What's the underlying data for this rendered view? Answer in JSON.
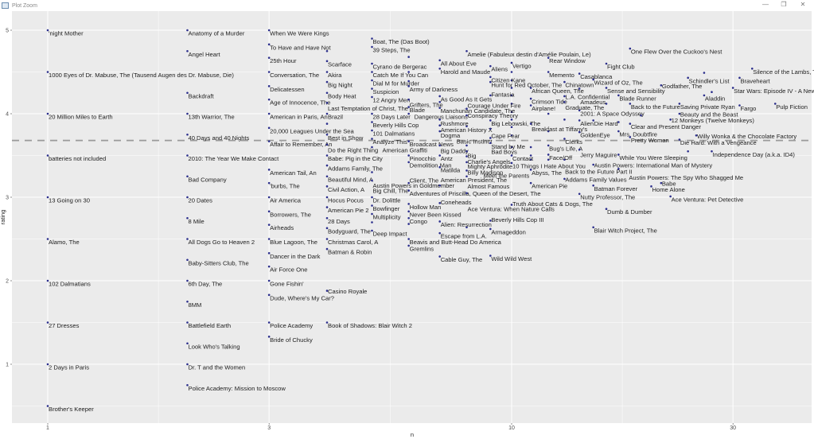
{
  "window": {
    "title": "Plot Zoom",
    "minimize": "—",
    "maximize": "❐",
    "close": "✕"
  },
  "colors": {
    "panel": "#EBEBEB",
    "grid": "#FFFFFF",
    "point": "#2B2E8C",
    "hline": "#9A9A9A"
  },
  "chart_data": {
    "type": "scatter",
    "title": "",
    "xlabel": "n",
    "ylabel": "rating",
    "xscale": "log10",
    "xlim": [
      0.84,
      44
    ],
    "ylim": [
      0.28,
      5.23
    ],
    "xticks": [
      1,
      3,
      10,
      30
    ],
    "xtick_labels": [
      "1",
      "3",
      "10",
      "30"
    ],
    "yticks": [
      1,
      2,
      3,
      4,
      5
    ],
    "ytick_labels": [
      "1",
      "2",
      "3",
      "4",
      "5"
    ],
    "grid": true,
    "hline": {
      "y": 3.68,
      "style": "dashed"
    },
    "points": [
      {
        "t": "'night Mother",
        "n": 1,
        "r": 5.0
      },
      {
        "t": "1000 Eyes of Dr. Mabuse, The (Tausend Augen des Dr. Mabuse, Die)",
        "n": 1,
        "r": 4.5
      },
      {
        "t": "20 Million Miles to Earth",
        "n": 1,
        "r": 4.0
      },
      {
        "t": "batteries not included",
        "n": 1,
        "r": 3.5
      },
      {
        "t": "13 Going on 30",
        "n": 1,
        "r": 3.0
      },
      {
        "t": "Alamo, The",
        "n": 1,
        "r": 2.5
      },
      {
        "t": "102 Dalmatians",
        "n": 1,
        "r": 2.0
      },
      {
        "t": "27 Dresses",
        "n": 1,
        "r": 1.5
      },
      {
        "t": "2 Days in Paris",
        "n": 1,
        "r": 1.0
      },
      {
        "t": "Brother's Keeper",
        "n": 1,
        "r": 0.5
      },
      {
        "t": "Anatomy of a Murder",
        "n": 2,
        "r": 5.0
      },
      {
        "t": "Angel Heart",
        "n": 2,
        "r": 4.75
      },
      {
        "t": "Backdraft",
        "n": 2,
        "r": 4.25
      },
      {
        "t": "13th Warrior, The",
        "n": 2,
        "r": 4.0
      },
      {
        "t": "40 Days and 40 Nights",
        "n": 2,
        "r": 3.75
      },
      {
        "t": "2010: The Year We Make Contact",
        "n": 2,
        "r": 3.5
      },
      {
        "t": "Bad Company",
        "n": 2,
        "r": 3.25
      },
      {
        "t": "20 Dates",
        "n": 2,
        "r": 3.0
      },
      {
        "t": "8 Mile",
        "n": 2,
        "r": 2.75
      },
      {
        "t": "All Dogs Go to Heaven 2",
        "n": 2,
        "r": 2.5
      },
      {
        "t": "Baby-Sitters Club, The",
        "n": 2,
        "r": 2.25
      },
      {
        "t": "6th Day, The",
        "n": 2,
        "r": 2.0
      },
      {
        "t": "8MM",
        "n": 2,
        "r": 1.75
      },
      {
        "t": "Battlefield Earth",
        "n": 2,
        "r": 1.5
      },
      {
        "t": "Look Who's Talking",
        "n": 2,
        "r": 1.25
      },
      {
        "t": "Dr. T and the Women",
        "n": 2,
        "r": 1.0
      },
      {
        "t": "Police Academy: Mission to Moscow",
        "n": 2,
        "r": 0.75
      },
      {
        "t": "When We Were Kings",
        "n": 3,
        "r": 5.0
      },
      {
        "t": "To Have and Have Not",
        "n": 3,
        "r": 4.83
      },
      {
        "t": "25th Hour",
        "n": 3,
        "r": 4.67
      },
      {
        "t": "Conversation, The",
        "n": 3,
        "r": 4.5
      },
      {
        "t": "Delicatessen",
        "n": 3,
        "r": 4.33
      },
      {
        "t": "Age of Innocence, The",
        "n": 3,
        "r": 4.17
      },
      {
        "t": "American in Paris, An",
        "n": 3,
        "r": 4.0
      },
      {
        "t": "20,000 Leagues Under the Sea",
        "n": 3,
        "r": 3.83
      },
      {
        "t": "Affair to Remember, An",
        "n": 3,
        "r": 3.67
      },
      {
        "t": "American Tail, An",
        "n": 3,
        "r": 3.33
      },
      {
        "t": "'burbs, The",
        "n": 3,
        "r": 3.17
      },
      {
        "t": "Air America",
        "n": 3,
        "r": 3.0
      },
      {
        "t": "Borrowers, The",
        "n": 3,
        "r": 2.83
      },
      {
        "t": "Airheads",
        "n": 3,
        "r": 2.67
      },
      {
        "t": "Blue Lagoon, The",
        "n": 3,
        "r": 2.5
      },
      {
        "t": "Dancer in the Dark",
        "n": 3,
        "r": 2.33
      },
      {
        "t": "Air Force One",
        "n": 3,
        "r": 2.17
      },
      {
        "t": "Gone Fishin'",
        "n": 3,
        "r": 2.0
      },
      {
        "t": "Dude, Where's My Car?",
        "n": 3,
        "r": 1.83
      },
      {
        "t": "Police Academy",
        "n": 3,
        "r": 1.5
      },
      {
        "t": "Bride of Chucky",
        "n": 3,
        "r": 1.33
      },
      {
        "t": "Scarface",
        "n": 4,
        "r": 4.63
      },
      {
        "t": "Akira",
        "n": 4,
        "r": 4.5
      },
      {
        "t": "Big Night",
        "n": 4,
        "r": 4.38
      },
      {
        "t": "Body Heat",
        "n": 4,
        "r": 4.25
      },
      {
        "t": "Last Temptation of Christ, The",
        "n": 4,
        "r": 4.13
      },
      {
        "t": "Brazil",
        "n": 4,
        "r": 4.0
      },
      {
        "t": "Best in Show",
        "n": 4,
        "r": 3.75
      },
      {
        "t": "Do the Right Thing",
        "n": 4,
        "r": 3.63
      },
      {
        "t": "Babe: Pig in the City",
        "n": 4,
        "r": 3.5
      },
      {
        "t": "Addams Family, The",
        "n": 4,
        "r": 3.38
      },
      {
        "t": "Beautiful Mind, A",
        "n": 4,
        "r": 3.25
      },
      {
        "t": "Civil Action, A",
        "n": 4,
        "r": 3.13
      },
      {
        "t": "Hocus Pocus",
        "n": 4,
        "r": 3.0
      },
      {
        "t": "American Pie 2",
        "n": 4,
        "r": 2.88
      },
      {
        "t": "28 Days",
        "n": 4,
        "r": 2.75
      },
      {
        "t": "Bodyguard, The",
        "n": 4,
        "r": 2.63
      },
      {
        "t": "Christmas Carol, A",
        "n": 4,
        "r": 2.5
      },
      {
        "t": "Batman & Robin",
        "n": 4,
        "r": 2.38
      },
      {
        "t": "Casino Royale",
        "n": 4,
        "r": 1.88
      },
      {
        "t": "Book of Shadows: Blair Witch 2",
        "n": 4,
        "r": 1.5
      },
      {
        "t": "Boat, The (Das Boot)",
        "n": 5,
        "r": 4.9
      },
      {
        "t": "39 Steps, The",
        "n": 5,
        "r": 4.8
      },
      {
        "t": "Cyrano de Bergerac",
        "n": 5,
        "r": 4.6
      },
      {
        "t": "Catch Me If You Can",
        "n": 5,
        "r": 4.5
      },
      {
        "t": "Dial M for Murder",
        "n": 5,
        "r": 4.4
      },
      {
        "t": "Suspicion",
        "n": 5,
        "r": 4.3
      },
      {
        "t": "12 Angry Men",
        "n": 5,
        "r": 4.2
      },
      {
        "t": "28 Days Later",
        "n": 5,
        "r": 4.0
      },
      {
        "t": "Beverly Hills Cop",
        "n": 5,
        "r": 3.9
      },
      {
        "t": "101 Dalmatians",
        "n": 5,
        "r": 3.8
      },
      {
        "t": "Analyze This",
        "n": 5,
        "r": 3.7
      },
      {
        "t": "American Graffiti",
        "n": 5,
        "r": 3.6
      },
      {
        "t": "Austin Powers in Goldmember",
        "n": 5,
        "r": 3.3
      },
      {
        "t": "Big Chill, The",
        "n": 5,
        "r": 3.2
      },
      {
        "t": "Dr. Dolittle",
        "n": 5,
        "r": 3.0
      },
      {
        "t": "Bowfinger",
        "n": 5,
        "r": 2.9
      },
      {
        "t": "Multiplicity",
        "n": 5,
        "r": 2.8
      },
      {
        "t": "Deep Impact",
        "n": 5,
        "r": 2.6
      },
      {
        "t": "Army of Darkness",
        "n": 6,
        "r": 4.33
      },
      {
        "t": "Grifters, The",
        "n": 6,
        "r": 4.17
      },
      {
        "t": "Blade",
        "n": 6,
        "r": 4.08
      },
      {
        "t": "Dangerous Liaisons",
        "n": 6,
        "r": 4.0
      },
      {
        "t": "Broadcast News",
        "n": 6,
        "r": 3.67
      },
      {
        "t": "Pinocchio",
        "n": 6,
        "r": 3.5
      },
      {
        "t": "Demolition Man",
        "n": 6,
        "r": 3.42
      },
      {
        "t": "Client, The",
        "n": 6,
        "r": 3.17
      },
      {
        "t": "Adventures of Priscilla, Queen of the Desert, The",
        "n": 6,
        "r": 3.08
      },
      {
        "t": "Hollow Man",
        "n": 6,
        "r": 2.92
      },
      {
        "t": "Never Been Kissed",
        "n": 6,
        "r": 2.83
      },
      {
        "t": "Congo",
        "n": 6,
        "r": 2.75
      },
      {
        "t": "Beavis and Butt-Head Do America",
        "n": 6,
        "r": 2.5
      },
      {
        "t": "Gremlins",
        "n": 6,
        "r": 2.42
      },
      {
        "t": "All About Eve",
        "n": 7,
        "r": 4.64
      },
      {
        "t": "Harold and Maude",
        "n": 7,
        "r": 4.54
      },
      {
        "t": "As Good As It Gets",
        "n": 7,
        "r": 4.21
      },
      {
        "t": "Manchurian Candidate, The",
        "n": 7,
        "r": 4.14
      },
      {
        "t": "Rushmore",
        "n": 7,
        "r": 4.07
      },
      {
        "t": "American History X",
        "n": 7,
        "r": 3.93
      },
      {
        "t": "Dogma",
        "n": 7,
        "r": 3.86
      },
      {
        "t": "Basic Instinct",
        "n": 7,
        "r": 3.79
      },
      {
        "t": "Big Daddy",
        "n": 7,
        "r": 3.62
      },
      {
        "t": "Antz",
        "n": 7,
        "r": 3.5
      },
      {
        "t": "Matilda",
        "n": 7,
        "r": 3.36
      },
      {
        "t": "American President, The",
        "n": 7,
        "r": 3.14
      },
      {
        "t": "Coneheads",
        "n": 7,
        "r": 2.93
      },
      {
        "t": "Alien: Resurrection",
        "n": 7,
        "r": 2.71
      },
      {
        "t": "Escape from L.A.",
        "n": 7,
        "r": 2.57
      },
      {
        "t": "Cable Guy, The",
        "n": 7,
        "r": 2.29
      },
      {
        "t": "Amelie (Fabuleux destin d'Amélie Poulain, Le)",
        "n": 8,
        "r": 4.75
      },
      {
        "t": "Conspiracy Theory",
        "n": 8,
        "r": 4.06
      },
      {
        "t": "Courage Under Fire",
        "n": 8,
        "r": 3.98
      },
      {
        "t": "Big",
        "n": 8,
        "r": 3.62
      },
      {
        "t": "Charlie's Angels",
        "n": 8,
        "r": 3.55
      },
      {
        "t": "Mighty Aphrodite",
        "n": 8,
        "r": 3.49
      },
      {
        "t": "Billy Madison",
        "n": 8,
        "r": 3.42
      },
      {
        "t": "Almost Famous",
        "n": 8,
        "r": 3.32
      },
      {
        "t": "Meet the Parents",
        "n": 8,
        "r": 3.25
      },
      {
        "t": "Ace Ventura: When Nature Calls",
        "n": 8,
        "r": 3.05
      },
      {
        "t": "Aliens",
        "n": 9,
        "r": 4.57
      },
      {
        "t": "Citizen Kane",
        "n": 9,
        "r": 4.44
      },
      {
        "t": "Hunt for Red October, The",
        "n": 9,
        "r": 4.38
      },
      {
        "t": "Fantasia",
        "n": 9,
        "r": 4.22
      },
      {
        "t": "Big Lebowski, The",
        "n": 9,
        "r": 3.92
      },
      {
        "t": "Cape Fear",
        "n": 9,
        "r": 3.82
      },
      {
        "t": "Stand by Me",
        "n": 9,
        "r": 3.71
      },
      {
        "t": "Bad Boys",
        "n": 9,
        "r": 3.65
      },
      {
        "t": "Beverly Hills Cop III",
        "n": 9,
        "r": 2.72
      },
      {
        "t": "Armageddon",
        "n": 9,
        "r": 2.62
      },
      {
        "t": "Wild Wild West",
        "n": 9,
        "r": 2.3
      },
      {
        "t": "Vertigo",
        "n": 10,
        "r": 4.61
      },
      {
        "t": "Contact",
        "n": 10,
        "r": 3.5
      },
      {
        "t": "10 Things I Hate About You",
        "n": 10,
        "r": 3.41
      },
      {
        "t": "Truth About Cats & Dogs, The",
        "n": 10,
        "r": 2.91
      },
      {
        "t": "African Queen, The",
        "n": 11,
        "r": 4.31
      },
      {
        "t": "Crimson Tide",
        "n": 11,
        "r": 4.18
      },
      {
        "t": "Airplane!",
        "n": 11,
        "r": 4.1
      },
      {
        "t": "Breakfast at Tiffany's",
        "n": 11,
        "r": 3.88
      },
      {
        "t": "Abyss, The",
        "n": 11,
        "r": 3.33
      },
      {
        "t": "American Pie",
        "n": 11,
        "r": 3.17
      },
      {
        "t": "Rear Window",
        "n": 12,
        "r": 4.67
      },
      {
        "t": "Memento",
        "n": 12,
        "r": 4.5
      },
      {
        "t": "Bug's Life, A",
        "n": 12,
        "r": 3.62
      },
      {
        "t": "Face/Off",
        "n": 12,
        "r": 3.51
      },
      {
        "t": "Back to the Future Part II",
        "n": 12,
        "r": 3.45
      },
      {
        "t": "Chinatown",
        "n": 13,
        "r": 4.38
      },
      {
        "t": "L.A. Confidential",
        "n": 13,
        "r": 4.21
      },
      {
        "t": "Graduate, The",
        "n": 13,
        "r": 4.14
      },
      {
        "t": "Clerks",
        "n": 13,
        "r": 3.7
      },
      {
        "t": "Addams Family Values",
        "n": 13,
        "r": 3.22
      },
      {
        "t": "Casablanca",
        "n": 14,
        "r": 4.48
      },
      {
        "t": "Amadeus",
        "n": 14,
        "r": 4.3
      },
      {
        "t": "2001: A Space Odyssey",
        "n": 14,
        "r": 4.04
      },
      {
        "t": "Alien",
        "n": 14,
        "r": 3.92
      },
      {
        "t": "GoldenEye",
        "n": 14,
        "r": 3.78
      },
      {
        "t": "Jerry Maguire",
        "n": 14,
        "r": 3.57
      },
      {
        "t": "Nutty Professor, The",
        "n": 14,
        "r": 3.04
      },
      {
        "t": "Wizard of Oz, The",
        "n": 15,
        "r": 4.41
      },
      {
        "t": "Die Hard",
        "n": 15,
        "r": 3.92
      },
      {
        "t": "Austin Powers: International Man of Mystery",
        "n": 15,
        "r": 3.39
      },
      {
        "t": "Batman Forever",
        "n": 15,
        "r": 3.14
      },
      {
        "t": "Blair Witch Project, The",
        "n": 15,
        "r": 2.64
      },
      {
        "t": "Fight Club",
        "n": 16,
        "r": 4.6
      },
      {
        "t": "Sense and Sensibility",
        "n": 16,
        "r": 4.31
      },
      {
        "t": "Dumb & Dumber",
        "n": 16,
        "r": 2.86
      },
      {
        "t": "Blade Runner",
        "n": 17,
        "r": 4.22
      },
      {
        "t": "Mrs. Doubtfire",
        "n": 17,
        "r": 3.79
      },
      {
        "t": "While You Were Sleeping",
        "n": 17,
        "r": 3.51
      },
      {
        "t": "Austin Powers: The Spy Who Shagged Me",
        "n": 17,
        "r": 3.34
      },
      {
        "t": "One Flew Over the Cuckoo's Nest",
        "n": 18,
        "r": 4.78
      },
      {
        "t": "Back to the Future",
        "n": 18,
        "r": 4.12
      },
      {
        "t": "Clear and Present Danger",
        "n": 18,
        "r": 3.88
      },
      {
        "t": "Pretty Woman",
        "n": 18,
        "r": 3.72
      },
      {
        "t": "Home Alone",
        "n": 20,
        "r": 3.13
      },
      {
        "t": "Godfather, The",
        "n": 21,
        "r": 4.34
      },
      {
        "t": "Babe",
        "n": 21,
        "r": 3.17
      },
      {
        "t": "12 Monkeys (Twelve Monkeys)",
        "n": 22,
        "r": 3.93
      },
      {
        "t": "Ace Ventura: Pet Detective",
        "n": 22,
        "r": 3.01
      },
      {
        "t": "Saving Private Ryan",
        "n": 23,
        "r": 4.12
      },
      {
        "t": "Beauty and the Beast",
        "n": 23,
        "r": 4.0
      },
      {
        "t": "Die Hard: With a Vengeance",
        "n": 23,
        "r": 3.69
      },
      {
        "t": "Schindler's List",
        "n": 24,
        "r": 4.43
      },
      {
        "t": "Willy Wonka & the Chocolate Factory",
        "n": 25,
        "r": 3.74
      },
      {
        "t": "Aladdin",
        "n": 26,
        "r": 4.22
      },
      {
        "t": "Independence Day (a.k.a. ID4)",
        "n": 27,
        "r": 3.55
      },
      {
        "t": "Star Wars: Episode IV - A New Hope",
        "n": 30,
        "r": 4.31
      },
      {
        "t": "Braveheart",
        "n": 31,
        "r": 4.43
      },
      {
        "t": "Fargo",
        "n": 31,
        "r": 4.1
      },
      {
        "t": "Silence of the Lambs, The",
        "n": 33,
        "r": 4.54
      },
      {
        "t": "Pulp Fiction",
        "n": 37,
        "r": 4.12
      }
    ],
    "unlabeled_points": [
      {
        "n": 4,
        "r": 4.75
      },
      {
        "n": 4,
        "r": 3.88
      },
      {
        "n": 5,
        "r": 2.7
      },
      {
        "n": 6,
        "r": 4.68
      },
      {
        "n": 6,
        "r": 4.5
      },
      {
        "n": 6,
        "r": 4.39
      },
      {
        "n": 6,
        "r": 2.68
      },
      {
        "n": 8,
        "r": 2.64
      },
      {
        "n": 8,
        "r": 3.85
      },
      {
        "n": 10,
        "r": 4.5
      },
      {
        "n": 10,
        "r": 4.4
      },
      {
        "n": 10,
        "r": 4.31
      },
      {
        "n": 10,
        "r": 4.22
      },
      {
        "n": 10,
        "r": 4.12
      },
      {
        "n": 10,
        "r": 4.02
      },
      {
        "n": 10,
        "r": 3.93
      },
      {
        "n": 10,
        "r": 3.84
      },
      {
        "n": 10,
        "r": 3.74
      },
      {
        "n": 10,
        "r": 3.6
      },
      {
        "n": 11,
        "r": 3.6
      },
      {
        "n": 11,
        "r": 3.5
      },
      {
        "n": 11,
        "r": 3.45
      },
      {
        "n": 12,
        "r": 4.0
      },
      {
        "n": 12,
        "r": 3.79
      },
      {
        "n": 13,
        "r": 3.93
      },
      {
        "n": 13,
        "r": 3.45
      },
      {
        "n": 16,
        "r": 4.12
      },
      {
        "n": 17,
        "r": 3.9
      },
      {
        "n": 19,
        "r": 3.98
      },
      {
        "n": 24,
        "r": 3.55
      },
      {
        "n": 26,
        "r": 4.49
      },
      {
        "n": 27,
        "r": 4.26
      }
    ]
  }
}
